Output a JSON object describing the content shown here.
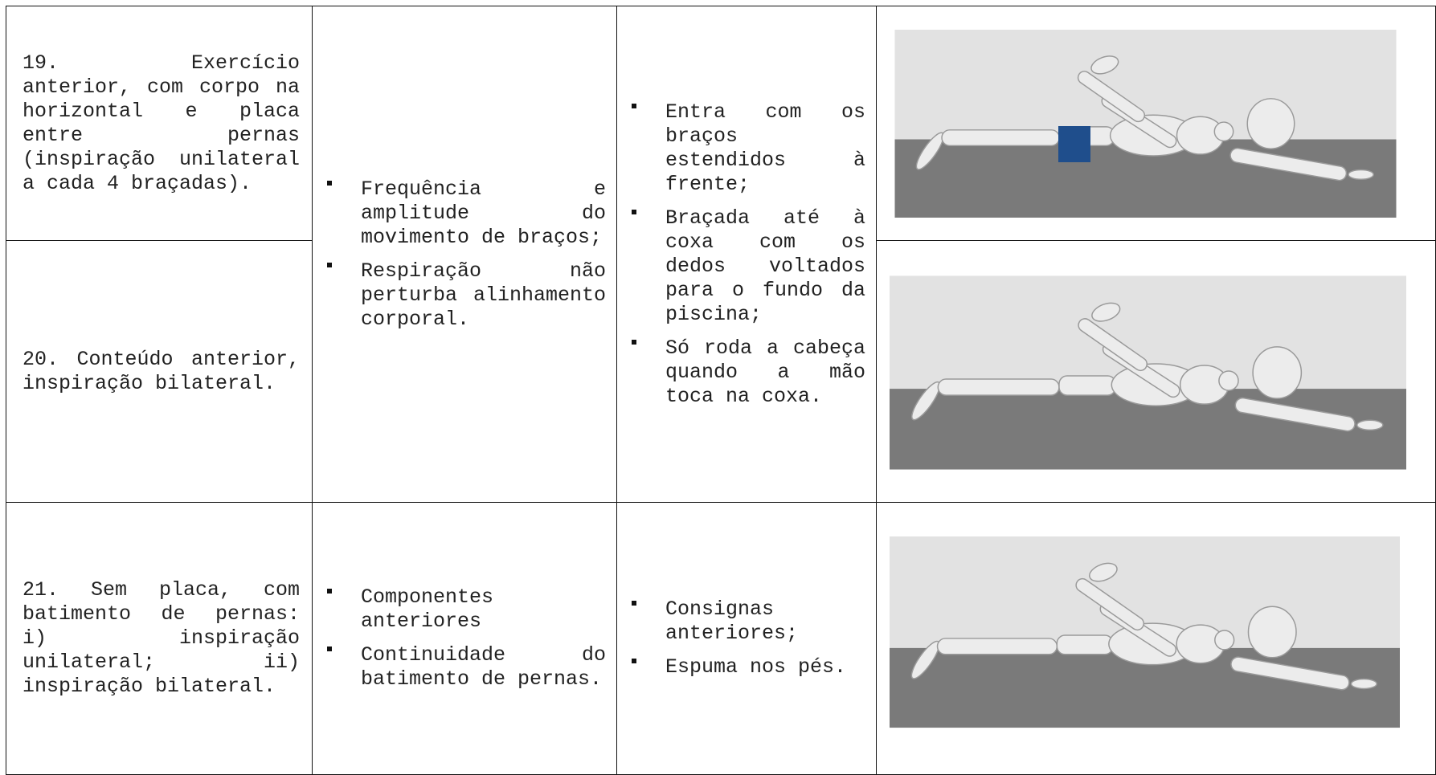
{
  "table": {
    "exercises": [
      "19. Exercício anterior, com corpo na horizontal e placa entre pernas (inspiração unilateral a cada 4 braçadas).",
      "20. Conteúdo anterior, inspiração bilateral.",
      "21. Sem placa, com batimento de pernas: i) inspiração unilateral; ii) inspiração bilateral."
    ],
    "groups": [
      {
        "criteria": [
          "Frequência e amplitude do movimento de braços;",
          "Respiração não perturba alinhamento corporal."
        ],
        "instructions": [
          "Entra com os braços estendidos à frente;",
          "Braçada até à coxa com os dedos voltados para o fundo da piscina;",
          "Só roda a cabeça quando a mão toca na coxa."
        ]
      },
      {
        "criteria": [
          "Componentes anteriores",
          "Continuidade do batimento de pernas."
        ],
        "instructions": [
          "Consignas anteriores;",
          "Espuma nos pés."
        ]
      }
    ]
  }
}
